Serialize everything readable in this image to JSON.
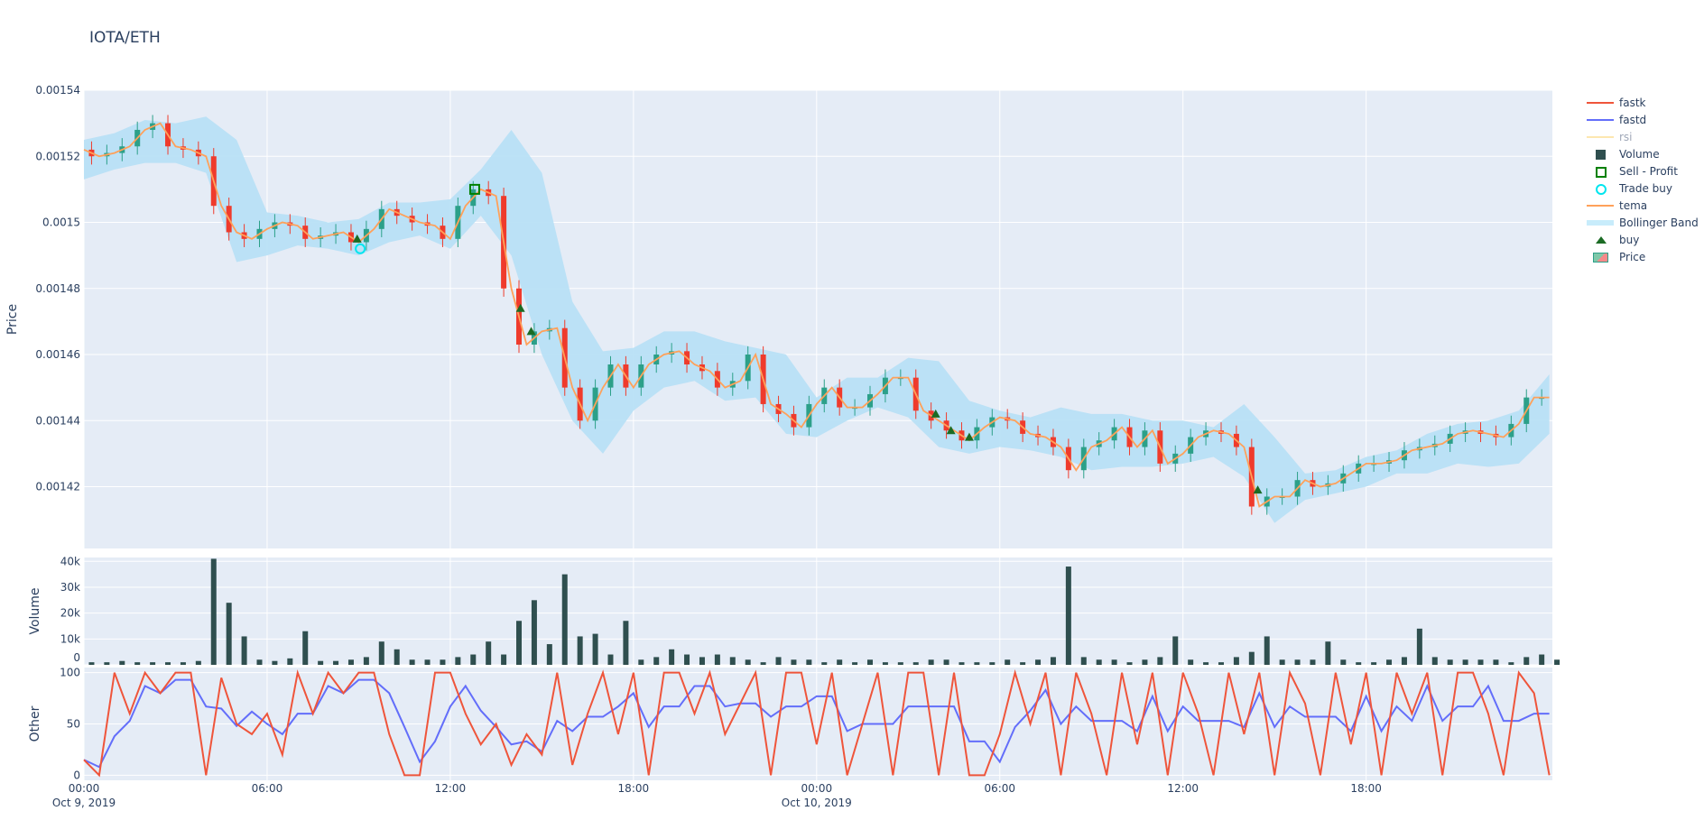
{
  "title": "IOTA/ETH",
  "colors": {
    "plot_bg": "#e5ecf6",
    "grid": "#ffffff",
    "increasing": "#2ca089",
    "decreasing": "#ef3b2c",
    "tema": "#ffa15a",
    "bollinger": "#b8e0f6",
    "volume": "#2f4f4f",
    "fastk": "#ef553b",
    "fastd": "#636efa",
    "rsi": "#fde7b0",
    "buy": "#1b6b24",
    "trade_buy": "#00e5ee",
    "sell_profit": "#008000"
  },
  "legend": {
    "position": "top-right",
    "items": [
      {
        "label": "fastk",
        "symbol": "line",
        "color": "#ef553b"
      },
      {
        "label": "fastd",
        "symbol": "line",
        "color": "#636efa"
      },
      {
        "label": "rsi",
        "symbol": "line",
        "color": "#fde7b0",
        "hidden": true
      },
      {
        "label": "Volume",
        "symbol": "square",
        "color": "#2f4f4f"
      },
      {
        "label": "Sell - Profit",
        "symbol": "square-open",
        "color": "#008000"
      },
      {
        "label": "Trade buy",
        "symbol": "circle-open",
        "color": "#00e5ee"
      },
      {
        "label": "tema",
        "symbol": "line",
        "color": "#ffa15a"
      },
      {
        "label": "Bollinger Band",
        "symbol": "band",
        "color": "#c8ecfb"
      },
      {
        "label": "buy",
        "symbol": "triangle",
        "color": "#1b6b24"
      },
      {
        "label": "Price",
        "symbol": "candle",
        "color": "#2ca089"
      }
    ]
  },
  "chart_data": [
    {
      "type": "candlestick",
      "ylabel": "Price",
      "ylim": [
        0.0014013,
        0.00154
      ],
      "yticks": [
        "0.00142",
        "0.00144",
        "0.00146",
        "0.00148",
        "0.0015",
        "0.00152",
        "0.00154"
      ],
      "ytick_values": [
        0.00142,
        0.00144,
        0.00146,
        0.00148,
        0.0015,
        0.00152,
        0.00154
      ],
      "grid": true,
      "x_start": "Oct 9, 2019 00:00",
      "x_step_hours": 0.5,
      "close_x1e6": [
        1522,
        1520,
        1521,
        1523,
        1528,
        1530,
        1523,
        1522,
        1520,
        1505,
        1497,
        1495,
        1498,
        1500,
        1499,
        1495,
        1496,
        1497,
        1494,
        1498,
        1504,
        1502,
        1500,
        1499,
        1495,
        1505,
        1510,
        1508,
        1480,
        1463,
        1467,
        1468,
        1450,
        1440,
        1450,
        1457,
        1450,
        1457,
        1460,
        1461,
        1457,
        1455,
        1450,
        1452,
        1460,
        1445,
        1442,
        1438,
        1445,
        1450,
        1444,
        1444,
        1448,
        1453,
        1453,
        1443,
        1440,
        1437,
        1434,
        1438,
        1441,
        1440,
        1436,
        1435,
        1432,
        1425,
        1432,
        1434,
        1438,
        1432,
        1437,
        1427,
        1430,
        1435,
        1437,
        1436,
        1432,
        1414,
        1417,
        1417,
        1422,
        1420,
        1421,
        1424,
        1427,
        1427,
        1428,
        1431,
        1432,
        1433,
        1436,
        1437,
        1436,
        1435,
        1439,
        1447,
        1447
      ],
      "bollinger_step_hours": 1,
      "bollinger_upper_x1e6": [
        1525,
        1527,
        1531,
        1530,
        1532,
        1525,
        1503,
        1502,
        1500,
        1501,
        1506,
        1506,
        1507,
        1516,
        1528,
        1515,
        1476,
        1461,
        1462,
        1467,
        1467,
        1464,
        1462,
        1460,
        1447,
        1453,
        1453,
        1459,
        1458,
        1446,
        1443,
        1441,
        1444,
        1442,
        1442,
        1440,
        1440,
        1438,
        1445,
        1435,
        1424,
        1425,
        1429,
        1431,
        1436,
        1439,
        1440,
        1443,
        1454
      ],
      "bollinger_lower_x1e6": [
        1513,
        1516,
        1518,
        1518,
        1515,
        1488,
        1490,
        1493,
        1492,
        1490,
        1494,
        1496,
        1492,
        1502,
        1490,
        1460,
        1440,
        1430,
        1443,
        1450,
        1452,
        1446,
        1447,
        1436,
        1435,
        1440,
        1444,
        1441,
        1432,
        1430,
        1432,
        1431,
        1429,
        1425,
        1426,
        1426,
        1427,
        1429,
        1423,
        1409,
        1416,
        1418,
        1420,
        1424,
        1424,
        1427,
        1426,
        1427,
        1436
      ],
      "buy_markers": [
        {
          "hour": 8.95,
          "price": 0.001495
        },
        {
          "hour": 14.3,
          "price": 0.001474
        },
        {
          "hour": 14.65,
          "price": 0.001467
        },
        {
          "hour": 27.9,
          "price": 0.001442
        },
        {
          "hour": 28.4,
          "price": 0.001437
        },
        {
          "hour": 29.0,
          "price": 0.001435
        },
        {
          "hour": 38.45,
          "price": 0.001419
        }
      ],
      "trade_buy": [
        {
          "hour": 9.05,
          "price": 0.001492
        }
      ],
      "sell_profit": [
        {
          "hour": 12.8,
          "price": 0.00151
        }
      ]
    },
    {
      "type": "bar",
      "ylabel": "Volume",
      "ylim": [
        0,
        41500
      ],
      "yticks": [
        "0",
        "10k",
        "20k",
        "30k",
        "40k"
      ],
      "ytick_values": [
        0,
        10000,
        20000,
        30000,
        40000
      ],
      "x_step_hours": 0.5,
      "values_k": [
        1,
        1,
        1.5,
        1,
        1,
        1,
        1,
        1.5,
        41,
        24,
        11,
        2,
        1.5,
        2.5,
        13,
        1.5,
        1.5,
        2,
        3,
        9,
        6,
        2,
        2,
        2,
        3,
        4,
        9,
        4,
        17,
        25,
        8,
        35,
        11,
        12,
        4,
        17,
        2,
        3,
        6,
        4,
        3,
        4,
        3,
        2,
        1,
        3,
        2,
        2,
        1,
        2,
        1,
        2,
        1,
        1,
        1,
        2,
        2,
        1,
        1,
        1,
        2,
        1,
        2,
        3,
        38,
        3,
        2,
        2,
        1,
        2,
        3,
        11,
        2,
        1,
        1,
        3,
        5,
        11,
        2,
        2,
        2,
        9,
        2,
        1,
        1,
        2,
        3,
        14,
        3,
        2,
        2,
        2,
        2,
        1,
        3,
        4,
        2
      ]
    },
    {
      "type": "line",
      "ylabel": "Other",
      "ylim": [
        -5,
        105
      ],
      "yticks": [
        "0",
        "50",
        "100"
      ],
      "ytick_values": [
        0,
        50,
        100
      ],
      "x_step_hours": 0.5,
      "series": [
        {
          "name": "fastk",
          "values": [
            15,
            0,
            100,
            60,
            100,
            80,
            100,
            100,
            0,
            95,
            50,
            40,
            60,
            20,
            100,
            60,
            100,
            80,
            100,
            100,
            40,
            0,
            0,
            100,
            100,
            60,
            30,
            50,
            10,
            40,
            20,
            100,
            10,
            60,
            100,
            40,
            100,
            0,
            100,
            100,
            60,
            100,
            40,
            70,
            100,
            0,
            100,
            100,
            30,
            100,
            0,
            50,
            100,
            0,
            100,
            100,
            0,
            100,
            0,
            0,
            40,
            100,
            50,
            100,
            0,
            100,
            60,
            0,
            100,
            30,
            100,
            0,
            100,
            60,
            0,
            100,
            40,
            100,
            0,
            100,
            70,
            0,
            100,
            30,
            100,
            0,
            100,
            60,
            100,
            0,
            100,
            100,
            60,
            0,
            100,
            80,
            0
          ]
        },
        {
          "name": "fastd",
          "values": [
            15,
            8,
            38,
            53,
            87,
            80,
            93,
            93,
            67,
            65,
            48,
            62,
            50,
            40,
            60,
            60,
            87,
            80,
            93,
            93,
            80,
            47,
            13,
            33,
            67,
            87,
            63,
            47,
            30,
            33,
            23,
            53,
            43,
            57,
            57,
            67,
            80,
            47,
            67,
            67,
            87,
            87,
            67,
            70,
            70,
            57,
            67,
            67,
            77,
            77,
            43,
            50,
            50,
            50,
            67,
            67,
            67,
            67,
            33,
            33,
            13,
            47,
            63,
            83,
            50,
            67,
            53,
            53,
            53,
            43,
            77,
            43,
            67,
            53,
            53,
            53,
            47,
            80,
            47,
            67,
            57,
            57,
            57,
            43,
            77,
            43,
            67,
            53,
            87,
            53,
            67,
            67,
            87,
            53,
            53,
            60,
            60
          ]
        }
      ]
    }
  ],
  "xaxis": {
    "range_hours": [
      0,
      48.1
    ],
    "ticks": [
      {
        "hour": 0,
        "label": "00:00",
        "sublabel": "Oct 9, 2019"
      },
      {
        "hour": 6,
        "label": "06:00"
      },
      {
        "hour": 12,
        "label": "12:00"
      },
      {
        "hour": 18,
        "label": "18:00"
      },
      {
        "hour": 24,
        "label": "00:00",
        "sublabel": "Oct 10, 2019"
      },
      {
        "hour": 30,
        "label": "06:00"
      },
      {
        "hour": 36,
        "label": "12:00"
      },
      {
        "hour": 42,
        "label": "18:00"
      }
    ]
  }
}
